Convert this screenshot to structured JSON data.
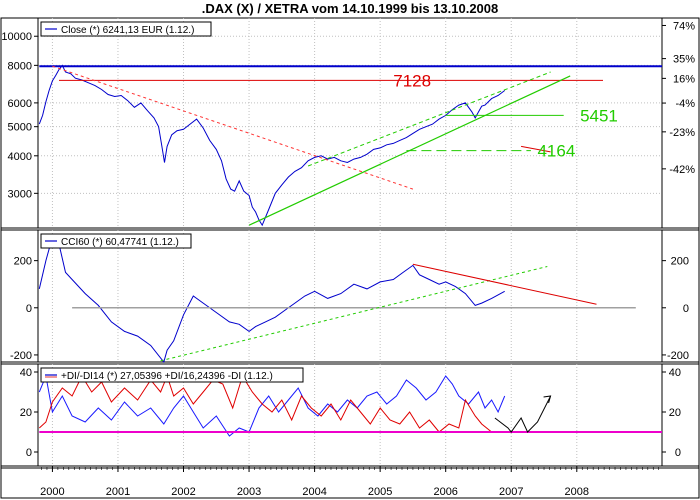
{
  "title": ".DAX (X) / XETRA vom 14.10.1999 bis 13.10.2008",
  "colors": {
    "price": "#0000cc",
    "resistance_blue": "#0000cc",
    "resistance_red": "#dd0000",
    "downtrend": "#ff3333",
    "uptrend": "#22cc00",
    "grid": "#c0c0c0",
    "zero": "#a0a0a0",
    "plus_di": "#1a1aff",
    "minus_di": "#e00000",
    "level10": "#ee00cc",
    "arrows": "#000000"
  },
  "chart_data": [
    {
      "type": "line",
      "name": "price",
      "legend": "Close (*) 6241,13 EUR (1.12.)",
      "y_scale": "log",
      "ylim": [
        2300,
        11500
      ],
      "y_ticks_left": [
        "3000",
        "4000",
        "5000",
        "6000",
        "8000",
        "10000"
      ],
      "y_ticks_right": [
        "74%",
        "35%",
        "16%",
        "-4%",
        "-23%",
        "-42%"
      ],
      "y_ticks_right_values": [
        10860,
        8424,
        7240,
        5992,
        4806,
        3619
      ],
      "x_ticks": [
        "2000",
        "2001",
        "2002",
        "2003",
        "2004",
        "2005",
        "2006",
        "2007",
        "2008"
      ],
      "x_range": [
        1999.78,
        2009.3
      ],
      "series": [
        {
          "name": "Close",
          "x": [
            1999.8,
            1999.85,
            1999.9,
            1999.95,
            2000.0,
            2000.05,
            2000.1,
            2000.15,
            2000.2,
            2000.28,
            2000.35,
            2000.45,
            2000.55,
            2000.65,
            2000.75,
            2000.85,
            2000.95,
            2001.05,
            2001.15,
            2001.25,
            2001.35,
            2001.45,
            2001.55,
            2001.62,
            2001.67,
            2001.71,
            2001.75,
            2001.82,
            2001.9,
            2002.0,
            2002.1,
            2002.2,
            2002.3,
            2002.4,
            2002.5,
            2002.58,
            2002.65,
            2002.72,
            2002.78,
            2002.85,
            2002.92,
            2003.0,
            2003.05,
            2003.1,
            2003.15,
            2003.2,
            2003.3,
            2003.4,
            2003.5,
            2003.6,
            2003.7,
            2003.8,
            2003.9,
            2004.0,
            2004.1,
            2004.2,
            2004.3,
            2004.4,
            2004.5,
            2004.6,
            2004.7,
            2004.8,
            2004.9,
            2005.0,
            2005.1,
            2005.2,
            2005.3,
            2005.4,
            2005.5,
            2005.6,
            2005.7,
            2005.8,
            2005.9,
            2006.0,
            2006.1,
            2006.2,
            2006.3,
            2006.4,
            2006.45,
            2006.5,
            2006.55,
            2006.6,
            2006.7,
            2006.8,
            2006.9
          ],
          "values": [
            5100,
            5450,
            6050,
            6600,
            7100,
            7400,
            7750,
            8000,
            7600,
            7500,
            7250,
            7150,
            7000,
            6850,
            6650,
            6400,
            6300,
            6350,
            6100,
            5800,
            6000,
            5650,
            5350,
            5000,
            4300,
            3800,
            4300,
            4700,
            4850,
            4900,
            5100,
            5300,
            4950,
            4500,
            4200,
            3850,
            3350,
            3100,
            3050,
            3300,
            3050,
            2950,
            2700,
            2600,
            2450,
            2350,
            2650,
            3000,
            3200,
            3400,
            3550,
            3650,
            3850,
            3950,
            4000,
            3900,
            3950,
            3850,
            3800,
            3900,
            3950,
            4050,
            4200,
            4250,
            4350,
            4400,
            4500,
            4600,
            4750,
            4900,
            5000,
            5100,
            5300,
            5450,
            5700,
            5900,
            6000,
            5600,
            5350,
            5600,
            5850,
            5900,
            6200,
            6350,
            6600
          ]
        }
      ],
      "lines": [
        {
          "name": "high-resistance",
          "x": [
            1999.8,
            2009.3
          ],
          "y": [
            7950,
            7950
          ]
        },
        {
          "name": "resistance-7128",
          "x": [
            2000.1,
            2008.4
          ],
          "y": [
            7128,
            7128
          ]
        },
        {
          "name": "downtrend",
          "x": [
            2000.0,
            2005.5
          ],
          "y": [
            7950,
            3100
          ]
        },
        {
          "name": "uptrend-solid",
          "x": [
            2003.0,
            2007.9
          ],
          "y": [
            2350,
            7380
          ]
        },
        {
          "name": "uptrend-dashed",
          "x": [
            2003.9,
            2007.6
          ],
          "y": [
            3700,
            7600
          ]
        },
        {
          "name": "support-5451",
          "x": [
            2006.0,
            2007.8
          ],
          "y": [
            5451,
            5451
          ]
        },
        {
          "name": "support-4164",
          "x": [
            2005.4,
            2007.3
          ],
          "y": [
            4164,
            4164
          ]
        },
        {
          "name": "short-red",
          "x": [
            2007.15,
            2007.6
          ],
          "y": [
            4300,
            4120
          ]
        }
      ],
      "labels": [
        {
          "text": "7128",
          "x": 2005.2,
          "y": 7128,
          "color": "#dd0000"
        },
        {
          "text": "5451",
          "x": 2008.05,
          "y": 5451,
          "color": "#22cc00"
        },
        {
          "text": "4164",
          "x": 2007.4,
          "y": 4164,
          "color": "#22cc00"
        }
      ]
    },
    {
      "type": "line",
      "name": "cci",
      "legend": "CCI60 (*) 60,47741 (1.12.)",
      "ylim": [
        -230,
        330
      ],
      "y_ticks_left": [
        "200",
        "0",
        "-200"
      ],
      "y_ticks_right": [
        "200",
        "0",
        "-200"
      ],
      "y_tick_values": [
        200,
        0,
        -200
      ],
      "series": [
        {
          "name": "CCI60",
          "x": [
            1999.8,
            1999.9,
            2000.0,
            2000.1,
            2000.2,
            2000.3,
            2000.5,
            2000.7,
            2000.9,
            2001.1,
            2001.3,
            2001.5,
            2001.7,
            2001.75,
            2001.85,
            2002.0,
            2002.15,
            2002.3,
            2002.5,
            2002.7,
            2002.85,
            2003.0,
            2003.1,
            2003.25,
            2003.4,
            2003.55,
            2003.7,
            2003.85,
            2004.0,
            2004.2,
            2004.4,
            2004.6,
            2004.8,
            2005.0,
            2005.2,
            2005.35,
            2005.5,
            2005.6,
            2005.75,
            2005.9,
            2006.0,
            2006.15,
            2006.3,
            2006.45,
            2006.55,
            2006.7,
            2006.9
          ],
          "values": [
            80,
            200,
            300,
            270,
            150,
            120,
            60,
            10,
            -60,
            -100,
            -120,
            -160,
            -230,
            -180,
            -140,
            -30,
            50,
            20,
            -20,
            -60,
            -70,
            -100,
            -80,
            -60,
            -40,
            -10,
            20,
            50,
            70,
            40,
            60,
            100,
            80,
            110,
            120,
            150,
            180,
            140,
            120,
            100,
            110,
            90,
            60,
            10,
            20,
            40,
            70
          ]
        }
      ],
      "lines": [
        {
          "name": "cci-zero",
          "x": [
            2000.3,
            2008.9
          ],
          "y": [
            0,
            0
          ]
        },
        {
          "name": "cci-uptrend",
          "x": [
            2001.65,
            2007.55
          ],
          "y": [
            -225,
            175
          ]
        },
        {
          "name": "cci-downtrend",
          "x": [
            2005.5,
            2008.3
          ],
          "y": [
            185,
            15
          ]
        }
      ]
    },
    {
      "type": "line",
      "name": "dmi",
      "legend": "+DI/-DI14 (*) 27,05396 +DI/16,24396 -DI (1.12.)",
      "ylim": [
        -7,
        44
      ],
      "y_ticks_left": [
        "40",
        "20",
        "0"
      ],
      "y_ticks_right": [
        "40",
        "20",
        "0"
      ],
      "y_tick_values": [
        40,
        20,
        0
      ],
      "series": [
        {
          "name": "+DI",
          "x": [
            1999.8,
            1999.9,
            2000.0,
            2000.15,
            2000.3,
            2000.5,
            2000.7,
            2000.9,
            2001.1,
            2001.3,
            2001.5,
            2001.7,
            2001.85,
            2002.0,
            2002.15,
            2002.3,
            2002.5,
            2002.7,
            2002.85,
            2003.0,
            2003.15,
            2003.3,
            2003.45,
            2003.6,
            2003.75,
            2003.9,
            2004.05,
            2004.2,
            2004.35,
            2004.5,
            2004.65,
            2004.8,
            2004.95,
            2005.1,
            2005.25,
            2005.4,
            2005.55,
            2005.7,
            2005.85,
            2006.0,
            2006.1,
            2006.2,
            2006.35,
            2006.5,
            2006.6,
            2006.7,
            2006.8,
            2006.9
          ],
          "values": [
            30,
            38,
            20,
            28,
            18,
            15,
            22,
            16,
            25,
            18,
            22,
            14,
            22,
            28,
            20,
            12,
            18,
            8,
            12,
            10,
            22,
            28,
            20,
            26,
            32,
            22,
            18,
            24,
            20,
            26,
            22,
            28,
            30,
            24,
            28,
            36,
            32,
            26,
            30,
            38,
            34,
            28,
            24,
            30,
            22,
            26,
            20,
            28
          ]
        },
        {
          "name": "-DI",
          "x": [
            1999.8,
            1999.9,
            2000.0,
            2000.15,
            2000.3,
            2000.45,
            2000.6,
            2000.75,
            2000.9,
            2001.1,
            2001.3,
            2001.5,
            2001.65,
            2001.75,
            2001.85,
            2002.0,
            2002.15,
            2002.3,
            2002.45,
            2002.6,
            2002.75,
            2002.9,
            2003.05,
            2003.2,
            2003.35,
            2003.5,
            2003.65,
            2003.8,
            2003.95,
            2004.1,
            2004.25,
            2004.4,
            2004.55,
            2004.7,
            2004.85,
            2005.0,
            2005.15,
            2005.3,
            2005.45,
            2005.6,
            2005.75,
            2005.9,
            2006.05,
            2006.2,
            2006.3,
            2006.45,
            2006.55,
            2006.7
          ],
          "values": [
            12,
            15,
            25,
            32,
            28,
            38,
            30,
            35,
            25,
            32,
            26,
            36,
            30,
            38,
            28,
            32,
            24,
            30,
            36,
            34,
            22,
            38,
            30,
            24,
            20,
            26,
            16,
            28,
            22,
            18,
            24,
            16,
            26,
            20,
            14,
            22,
            16,
            14,
            20,
            12,
            16,
            10,
            14,
            12,
            26,
            18,
            14,
            10
          ]
        }
      ],
      "lines": [
        {
          "name": "level-10",
          "x": [
            1999.8,
            2009.3
          ],
          "y": [
            10,
            10
          ]
        },
        {
          "name": "dmi-projection-arrows",
          "x": [
            2006.75,
            2006.95,
            2007.0,
            2007.15,
            2007.25,
            2007.4,
            2007.6
          ],
          "y": [
            17,
            12,
            10,
            17,
            10,
            15,
            28
          ]
        }
      ]
    }
  ]
}
